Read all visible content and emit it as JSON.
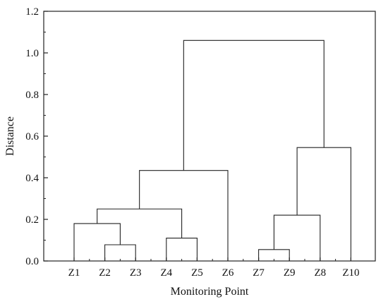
{
  "chart_data": {
    "type": "dendrogram",
    "xlabel": "Monitoring Point",
    "ylabel": "Distance",
    "ylim": [
      0,
      1.2
    ],
    "yticks": [
      "0.0",
      "0.2",
      "0.4",
      "0.6",
      "0.8",
      "1.0",
      "1.2"
    ],
    "leaf_order": [
      "Z1",
      "Z2",
      "Z3",
      "Z4",
      "Z5",
      "Z6",
      "Z7",
      "Z9",
      "Z8",
      "Z10"
    ],
    "merges": [
      {
        "a": "Z7",
        "b": "Z9",
        "height": 0.055
      },
      {
        "a": "Z2",
        "b": "Z3",
        "height": 0.078
      },
      {
        "a": "Z4",
        "b": "Z5",
        "height": 0.11
      },
      {
        "a": "Z1",
        "b": "Z2,Z3",
        "height": 0.18
      },
      {
        "a": "Z7,Z9",
        "b": "Z8",
        "height": 0.22
      },
      {
        "a": "Z1,Z2,Z3",
        "b": "Z4,Z5",
        "height": 0.25
      },
      {
        "a": "Z1,Z2,Z3,Z4,Z5",
        "b": "Z6",
        "height": 0.435
      },
      {
        "a": "Z7,Z9,Z8",
        "b": "Z10",
        "height": 0.545
      },
      {
        "a": "Z1,Z2,Z3,Z4,Z5,Z6",
        "b": "Z7,Z9,Z8,Z10",
        "height": 1.06
      }
    ],
    "grid": false,
    "colors": {
      "line": "#222222",
      "frame": "#222222",
      "text": "#111111"
    }
  }
}
